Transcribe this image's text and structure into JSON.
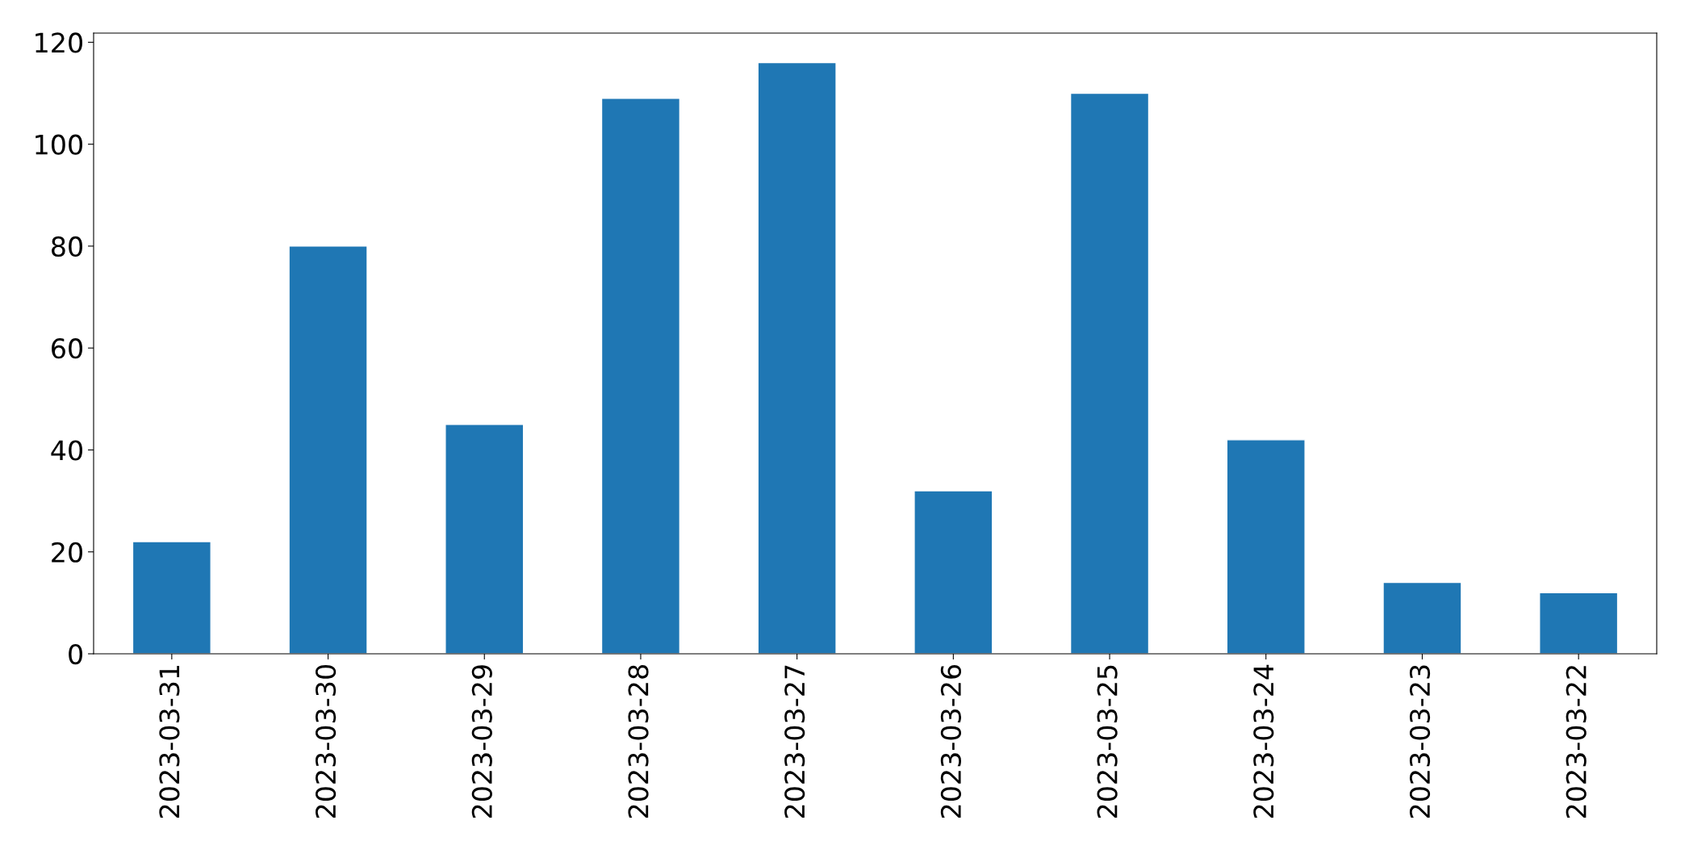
{
  "chart_data": {
    "type": "bar",
    "categories": [
      "2023-03-31",
      "2023-03-30",
      "2023-03-29",
      "2023-03-28",
      "2023-03-27",
      "2023-03-26",
      "2023-03-25",
      "2023-03-24",
      "2023-03-23",
      "2023-03-22"
    ],
    "values": [
      22,
      80,
      45,
      109,
      116,
      32,
      110,
      42,
      14,
      12
    ],
    "color": "#1f77b4",
    "ylim": [
      0,
      121.8
    ],
    "yticks": [
      0,
      20,
      40,
      60,
      80,
      100,
      120
    ],
    "grid": false
  }
}
